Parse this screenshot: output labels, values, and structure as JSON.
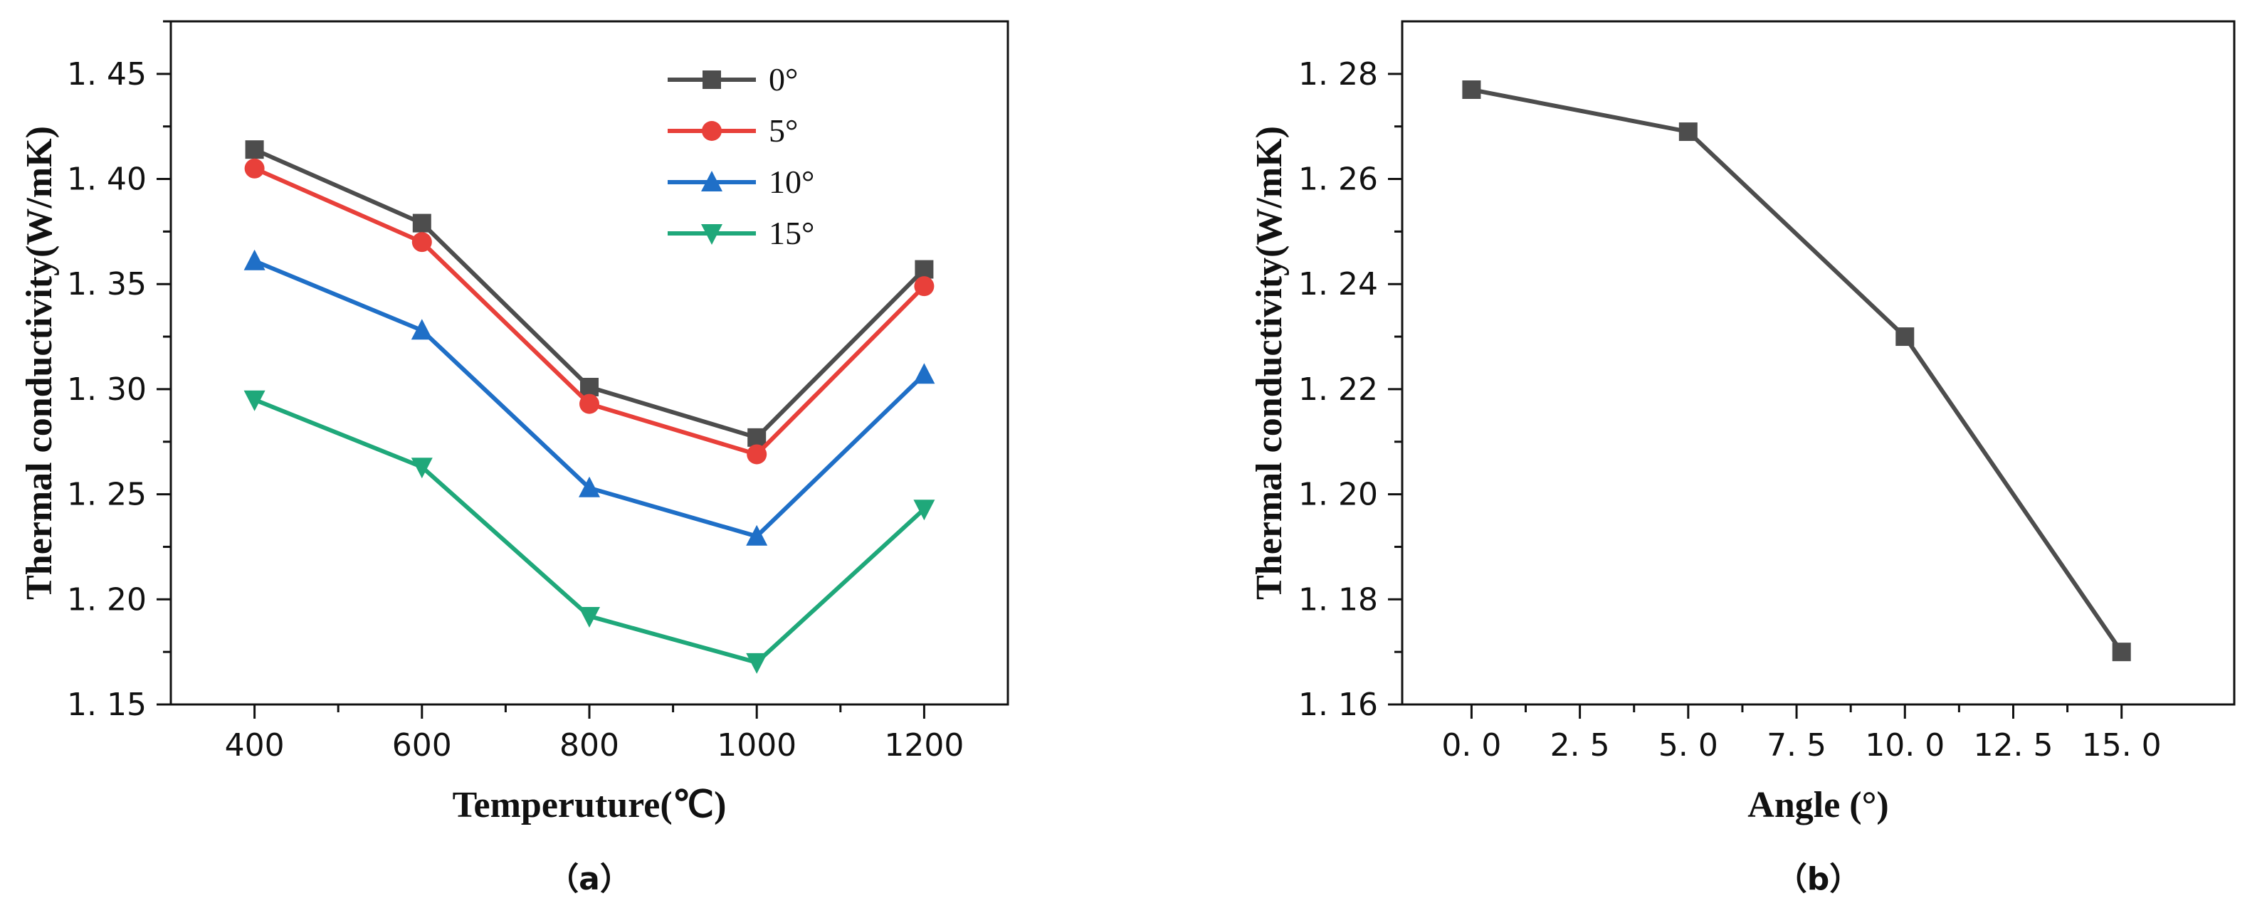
{
  "chart_data": [
    {
      "type": "line",
      "panel_label": "（a）",
      "xlabel": "Temperuture(℃)",
      "ylabel": "Thermal conductivity(W/mK)",
      "x": [
        400,
        600,
        800,
        1000,
        1200
      ],
      "x_ticks": [
        "400",
        "600",
        "800",
        "1000",
        "1200"
      ],
      "xlim": [
        300,
        1300
      ],
      "ylim": [
        1.15,
        1.475
      ],
      "y_ticks": [
        "1. 15",
        "1. 20",
        "1. 25",
        "1. 30",
        "1. 35",
        "1. 40",
        "1. 45"
      ],
      "legend_position": "top-center",
      "series": [
        {
          "name": "0°",
          "color": "#4d4d4d",
          "marker": "square",
          "values": [
            1.414,
            1.379,
            1.301,
            1.277,
            1.357
          ]
        },
        {
          "name": "5°",
          "color": "#e8403a",
          "marker": "circle",
          "values": [
            1.405,
            1.37,
            1.293,
            1.269,
            1.349
          ]
        },
        {
          "name": "10°",
          "color": "#1f6fc7",
          "marker": "triangle-up",
          "values": [
            1.361,
            1.328,
            1.253,
            1.23,
            1.307
          ]
        },
        {
          "name": "15°",
          "color": "#1fa87a",
          "marker": "triangle-down",
          "values": [
            1.295,
            1.263,
            1.192,
            1.17,
            1.243
          ]
        }
      ]
    },
    {
      "type": "line",
      "panel_label": "（b）",
      "xlabel": "Angle (°)",
      "ylabel": "Thermal conductivity(W/mK)",
      "x_ticks": [
        "0. 0",
        "2. 5",
        "5. 0",
        "7. 5",
        "10. 0",
        "12. 5",
        "15. 0"
      ],
      "x_tick_values": [
        0,
        2.5,
        5,
        7.5,
        10,
        12.5,
        15
      ],
      "xlim": [
        -1.6,
        17.6
      ],
      "ylim": [
        1.16,
        1.29
      ],
      "y_ticks": [
        "1. 16",
        "1. 18",
        "1. 20",
        "1. 22",
        "1. 24",
        "1. 26",
        "1. 28"
      ],
      "y_tick_values": [
        1.16,
        1.18,
        1.2,
        1.22,
        1.24,
        1.26,
        1.28
      ],
      "series": [
        {
          "name": "Thermal conductivity",
          "color": "#4d4d4d",
          "marker": "square",
          "x": [
            0,
            5,
            10,
            15
          ],
          "values": [
            1.277,
            1.269,
            1.23,
            1.17
          ]
        }
      ]
    }
  ]
}
